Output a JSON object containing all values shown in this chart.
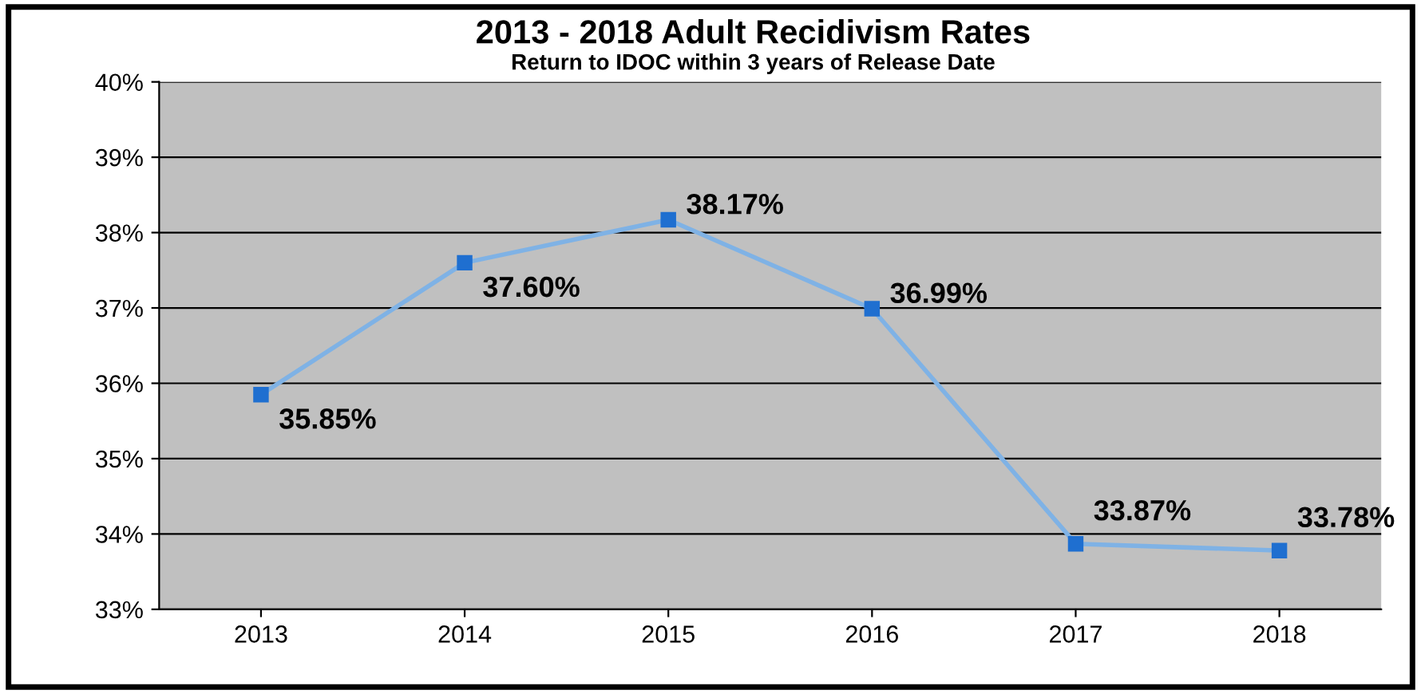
{
  "chart_data": {
    "type": "line",
    "title": "2013 - 2018 Adult Recidivism Rates",
    "subtitle": "Return to IDOC within 3 years of Release Date",
    "categories": [
      "2013",
      "2014",
      "2015",
      "2016",
      "2017",
      "2018"
    ],
    "series": [
      {
        "color": "#7fb2e5",
        "values": [
          35.85,
          37.6,
          38.17,
          36.99,
          33.87,
          33.78
        ],
        "value_labels": [
          "35.85%",
          "37.60%",
          "38.17%",
          "36.99%",
          "33.87%",
          "33.78%"
        ]
      }
    ],
    "marker": "square",
    "line_style": "solid",
    "ylim": [
      33,
      40
    ],
    "yticks": [
      {
        "value": 33,
        "label": "33%"
      },
      {
        "value": 34,
        "label": "34%"
      },
      {
        "value": 35,
        "label": "35%"
      },
      {
        "value": 36,
        "label": "36%"
      },
      {
        "value": 37,
        "label": "37%"
      },
      {
        "value": 38,
        "label": "38%"
      },
      {
        "value": 39,
        "label": "39%"
      },
      {
        "value": 40,
        "label": "40%"
      }
    ],
    "grid": "y",
    "legend": false
  }
}
